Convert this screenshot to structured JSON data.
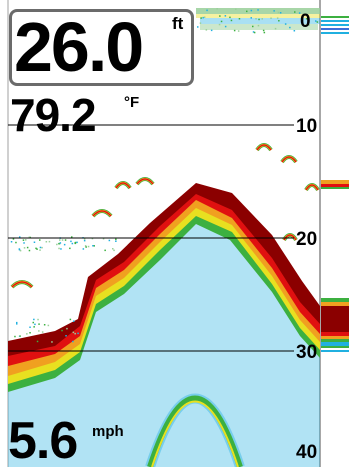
{
  "depth_readout": {
    "value": "26.0",
    "unit": "ft"
  },
  "temperature_readout": {
    "value": "79.2",
    "unit": "°F"
  },
  "speed_readout": {
    "value": "5.6",
    "unit": "mph"
  },
  "depth_scale": {
    "labels": [
      "0",
      "10",
      "20",
      "30",
      "40"
    ]
  },
  "colors": {
    "strong_return": "#8b0000",
    "medium_return": "#e01010",
    "weak_return": "#f0a020",
    "weaker_return": "#e8e020",
    "weakest_return": "#3cb040",
    "faint_return": "#20b0e0",
    "gridline": "#000000",
    "readout_box": "#6b6b6b"
  }
}
